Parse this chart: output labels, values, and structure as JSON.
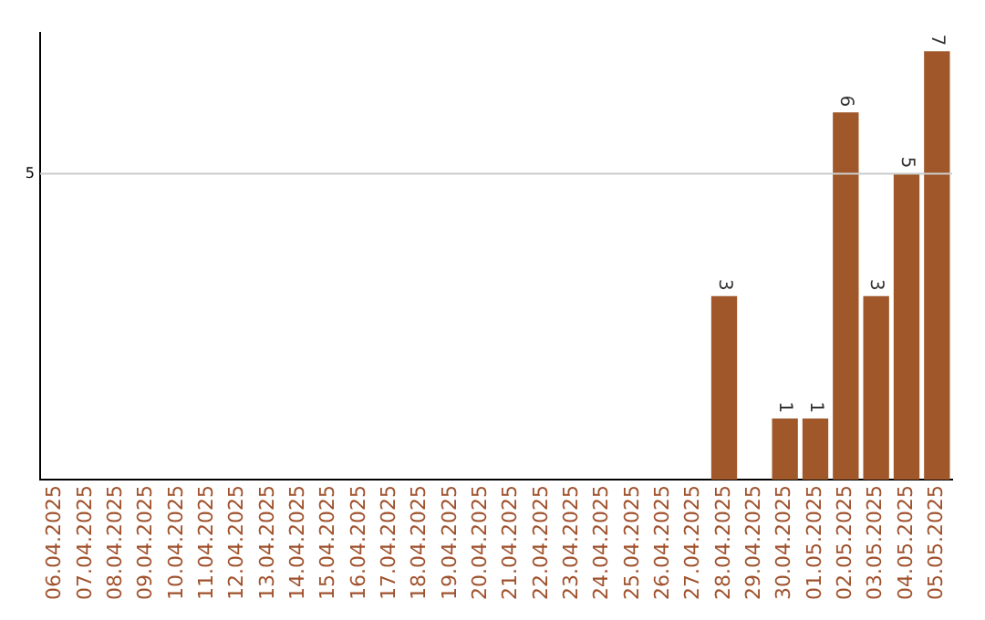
{
  "chart_data": {
    "type": "bar",
    "categories": [
      "06.04.2025",
      "07.04.2025",
      "08.04.2025",
      "09.04.2025",
      "10.04.2025",
      "11.04.2025",
      "12.04.2025",
      "13.04.2025",
      "14.04.2025",
      "15.04.2025",
      "16.04.2025",
      "17.04.2025",
      "18.04.2025",
      "19.04.2025",
      "20.04.2025",
      "21.04.2025",
      "22.04.2025",
      "23.04.2025",
      "24.04.2025",
      "25.04.2025",
      "26.04.2025",
      "27.04.2025",
      "28.04.2025",
      "29.04.2025",
      "30.04.2025",
      "01.05.2025",
      "02.05.2025",
      "03.05.2025",
      "04.05.2025",
      "05.05.2025"
    ],
    "values": [
      null,
      null,
      null,
      null,
      null,
      null,
      null,
      null,
      null,
      null,
      null,
      null,
      null,
      null,
      null,
      null,
      null,
      null,
      null,
      null,
      null,
      null,
      3,
      null,
      1,
      1,
      6,
      3,
      5,
      7
    ],
    "value_labels": [
      null,
      null,
      null,
      null,
      null,
      null,
      null,
      null,
      null,
      null,
      null,
      null,
      null,
      null,
      null,
      null,
      null,
      null,
      null,
      null,
      null,
      null,
      "3",
      null,
      "1",
      "1",
      "6",
      "3",
      "5",
      "7"
    ],
    "color": "#a0582a",
    "ylim": [
      0,
      7.3
    ],
    "ref_lines": [
      {
        "axis": "y",
        "value": 5,
        "label": "5",
        "color": "#cccccc"
      }
    ],
    "legend": false
  }
}
